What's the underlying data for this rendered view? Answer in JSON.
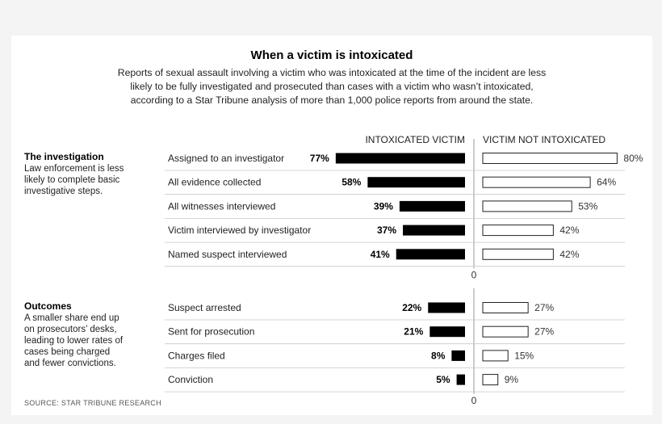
{
  "chart_data": {
    "type": "bar",
    "title": "When a victim is intoxicated",
    "subtitle": [
      "Reports of sexual assault involving a victim who was intoxicated at the time of the incident are less",
      "likely to be fully investigated and prosecuted than cases with a victim who wasn’t intoxicated,",
      "according to a Star Tribune analysis of more than 1,000 police reports from around the state."
    ],
    "series_names": [
      "INTOXICATED VICTIM",
      "VICTIM NOT INTOXICATED"
    ],
    "zero_label": "0",
    "source": "SOURCE: STAR TRIBUNE RESEARCH",
    "colors": {
      "intoxicated": "#000000",
      "not_intoxicated": "#ffffff",
      "rule": "#9a9a9a"
    },
    "sections": [
      {
        "title": "The investigation",
        "description": [
          "Law enforcement is less",
          "likely to complete basic",
          "investigative steps."
        ],
        "rows": [
          {
            "label": "Assigned to an investigator",
            "intoxicated": 77,
            "not_intoxicated": 80
          },
          {
            "label": "All evidence collected",
            "intoxicated": 58,
            "not_intoxicated": 64
          },
          {
            "label": "All witnesses interviewed",
            "intoxicated": 39,
            "not_intoxicated": 53
          },
          {
            "label": "Victim interviewed by investigator",
            "intoxicated": 37,
            "not_intoxicated": 42
          },
          {
            "label": "Named suspect interviewed",
            "intoxicated": 41,
            "not_intoxicated": 42
          }
        ]
      },
      {
        "title": "Outcomes",
        "description": [
          "A smaller share end up",
          "on prosecutors’ desks,",
          "leading to lower rates of",
          "cases being charged",
          "and fewer convictions."
        ],
        "rows": [
          {
            "label": "Suspect arrested",
            "intoxicated": 22,
            "not_intoxicated": 27
          },
          {
            "label": "Sent for prosecution",
            "intoxicated": 21,
            "not_intoxicated": 27
          },
          {
            "label": "Charges filed",
            "intoxicated": 8,
            "not_intoxicated": 15
          },
          {
            "label": "Conviction",
            "intoxicated": 5,
            "not_intoxicated": 9
          }
        ]
      }
    ]
  }
}
